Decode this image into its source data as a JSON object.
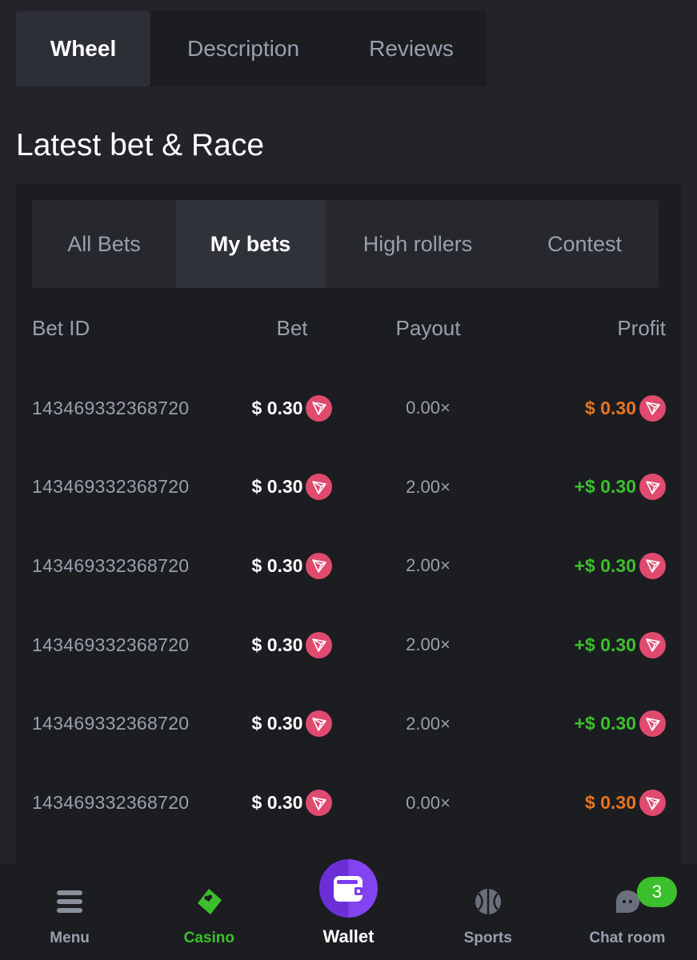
{
  "top_tabs": [
    {
      "label": "Wheel",
      "active": true
    },
    {
      "label": "Description"
    },
    {
      "label": "Reviews"
    }
  ],
  "section_title": "Latest bet & Race",
  "bet_tabs": [
    {
      "label": "All Bets"
    },
    {
      "label": "My bets",
      "active": true
    },
    {
      "label": "High rollers"
    },
    {
      "label": "Contest"
    }
  ],
  "table": {
    "headers": [
      "Bet ID",
      "Bet",
      "Payout",
      "Profit"
    ],
    "rows": [
      {
        "id": "143469332368720",
        "bet": "$ 0.30",
        "payout": "0.00×",
        "profit": "$ 0.30",
        "status": "loss"
      },
      {
        "id": "143469332368720",
        "bet": "$ 0.30",
        "payout": "2.00×",
        "profit": "+$ 0.30",
        "status": "win"
      },
      {
        "id": "143469332368720",
        "bet": "$ 0.30",
        "payout": "2.00×",
        "profit": "+$ 0.30",
        "status": "win"
      },
      {
        "id": "143469332368720",
        "bet": "$ 0.30",
        "payout": "2.00×",
        "profit": "+$ 0.30",
        "status": "win"
      },
      {
        "id": "143469332368720",
        "bet": "$ 0.30",
        "payout": "2.00×",
        "profit": "+$ 0.30",
        "status": "win"
      },
      {
        "id": "143469332368720",
        "bet": "$ 0.30",
        "payout": "0.00×",
        "profit": "$ 0.30",
        "status": "loss"
      }
    ],
    "currency_icon": "tron-icon"
  },
  "colors": {
    "win": "#3cbf2c",
    "loss": "#e8741f",
    "accent": "#7b3bf0",
    "trx": "#df4a6e"
  },
  "nav": {
    "items": [
      {
        "label": "Menu"
      },
      {
        "label": "Casino",
        "active": true
      },
      {
        "label": "Wallet"
      },
      {
        "label": "Sports"
      },
      {
        "label": "Chat room"
      }
    ],
    "chat_badge": "3"
  }
}
